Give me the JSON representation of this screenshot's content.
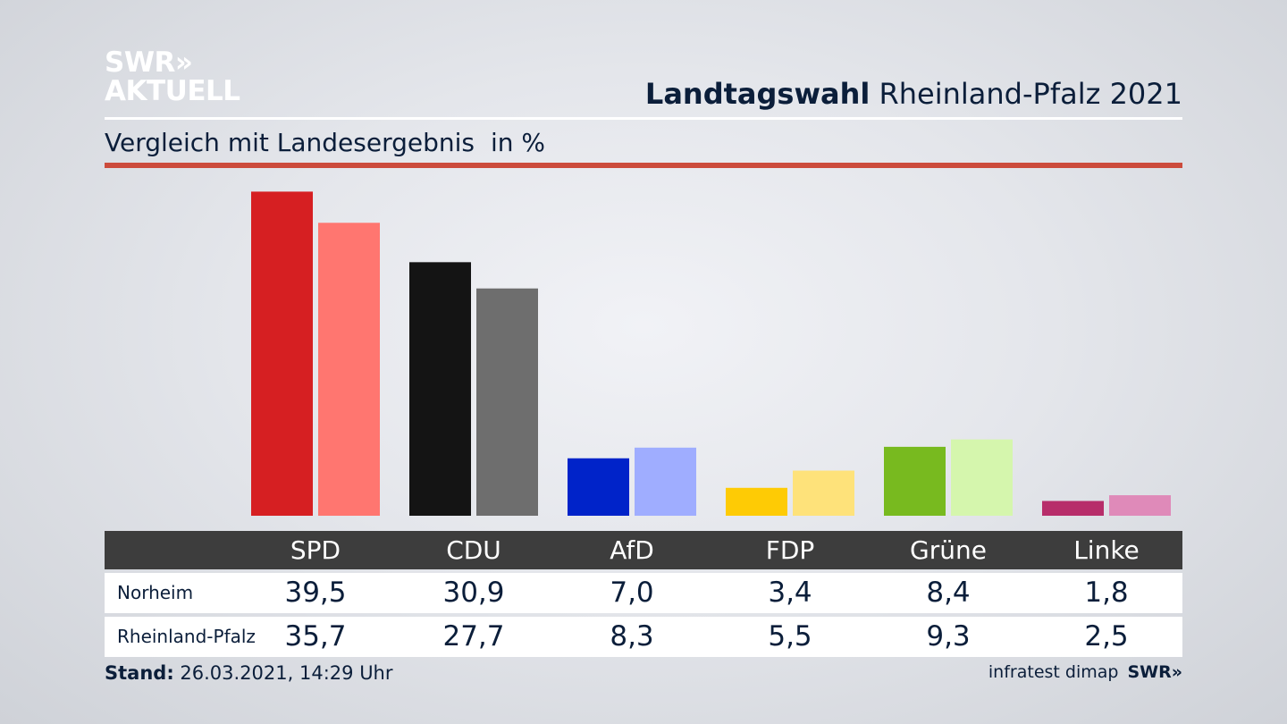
{
  "logo": {
    "line1": "SWR»",
    "line2": "AKTUELL"
  },
  "header": {
    "title_bold": "Landtagswahl",
    "title_rest": "Rheinland-Pfalz 2021"
  },
  "subtitle": {
    "text": "Vergleich mit Landesergebnis",
    "unit": "in %"
  },
  "footer": {
    "stand_label": "Stand:",
    "stand_value": "26.03.2021, 14:29 Uhr",
    "source": "infratest dimap",
    "brand": "SWR»"
  },
  "chart_data": {
    "type": "bar",
    "categories": [
      "SPD",
      "CDU",
      "AfD",
      "FDP",
      "Grüne",
      "Linke"
    ],
    "series": [
      {
        "name": "Norheim",
        "values": [
          39.5,
          30.9,
          7.0,
          3.4,
          8.4,
          1.8
        ],
        "colors": [
          "#d61f22",
          "#141414",
          "#0023c9",
          "#fecb05",
          "#78ba1f",
          "#b72d6a"
        ]
      },
      {
        "name": "Rheinland-Pfalz",
        "values": [
          35.7,
          27.7,
          8.3,
          5.5,
          9.3,
          2.5
        ],
        "colors": [
          "#ff7670",
          "#6e6e6e",
          "#9fadff",
          "#fee27a",
          "#d5f6ad",
          "#df8ab9"
        ]
      }
    ],
    "value_labels": [
      [
        "39,5",
        "30,9",
        "7,0",
        "3,4",
        "8,4",
        "1,8"
      ],
      [
        "35,7",
        "27,7",
        "8,3",
        "5,5",
        "9,3",
        "2,5"
      ]
    ],
    "ylim": [
      0,
      40
    ],
    "grid": false,
    "legend": "table-below"
  }
}
